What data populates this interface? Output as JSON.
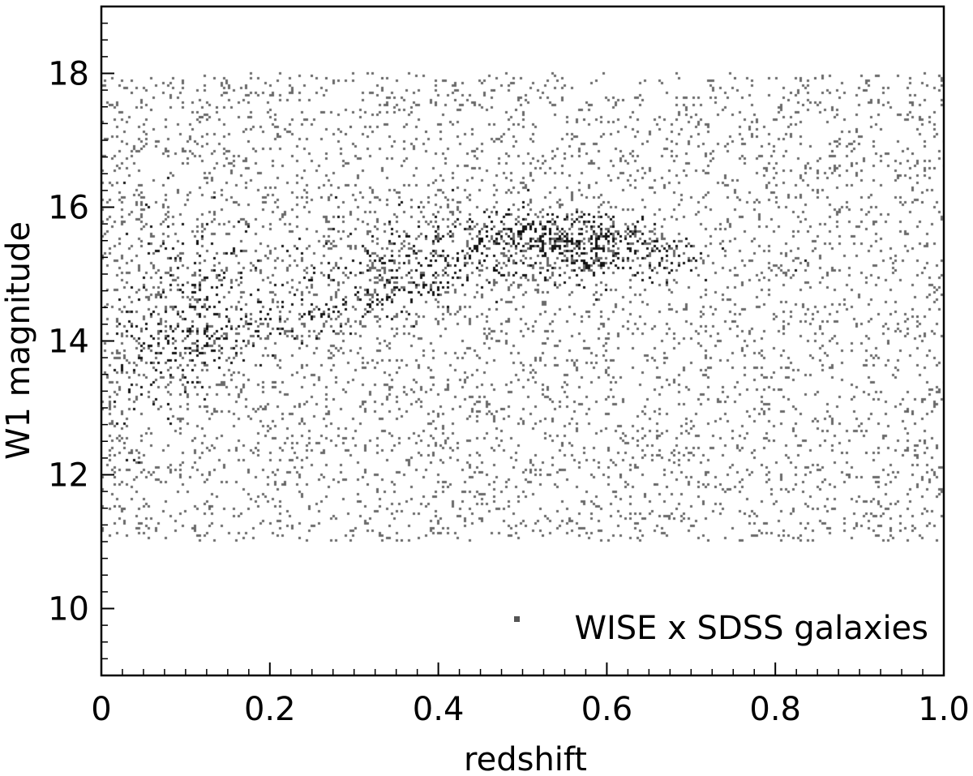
{
  "chart_data": {
    "type": "heatmap",
    "title": "",
    "xlabel": "redshift",
    "ylabel": "W1 magnitude",
    "xlim": [
      0,
      1.0
    ],
    "ylim": [
      9.0,
      19.0
    ],
    "xticks": [
      0,
      0.2,
      0.4,
      0.6,
      0.8,
      1.0
    ],
    "xtick_labels": [
      "0",
      "0.2",
      "0.4",
      "0.6",
      "0.8",
      "1.0"
    ],
    "yticks": [
      10,
      12,
      14,
      16,
      18
    ],
    "ytick_labels": [
      "10",
      "12",
      "14",
      "16",
      "18"
    ],
    "grid": false,
    "legend": {
      "position": "lower-right",
      "entries": [
        "WISE x SDSS galaxies"
      ]
    },
    "colors": {
      "points": "#555555",
      "core": "#000000",
      "axes": "#000000"
    },
    "density_ridge": {
      "description_units": "W1 magnitude at peak density vs redshift",
      "z": [
        0.02,
        0.05,
        0.08,
        0.12,
        0.15,
        0.2,
        0.25,
        0.3,
        0.35,
        0.4,
        0.45,
        0.5,
        0.55,
        0.6,
        0.65,
        0.7,
        0.75,
        0.8
      ],
      "w1_peak": [
        14.2,
        14.2,
        14.2,
        14.2,
        14.25,
        14.35,
        14.5,
        14.75,
        14.95,
        15.1,
        15.4,
        15.5,
        15.45,
        15.4,
        15.35,
        15.3,
        15.25,
        15.2
      ],
      "w1_faint_edge": [
        17.5,
        17.5,
        17.3,
        17.1,
        17.0,
        16.9,
        16.8,
        16.8,
        16.8,
        16.7,
        16.6,
        16.5,
        16.4,
        16.3,
        16.2,
        16.0,
        15.9,
        15.7
      ],
      "w1_bright_edge": [
        9.8,
        11.0,
        11.9,
        12.5,
        12.9,
        13.3,
        13.55,
        13.75,
        13.9,
        14.05,
        14.25,
        14.35,
        14.45,
        14.5,
        14.55,
        14.6,
        14.65,
        14.7
      ]
    }
  }
}
